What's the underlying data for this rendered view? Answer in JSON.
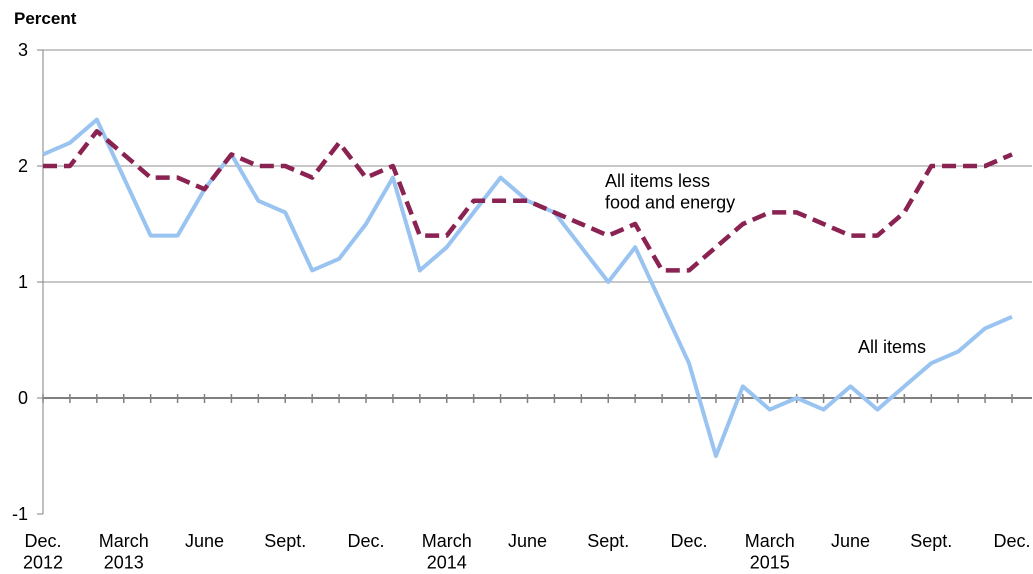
{
  "chart_data": {
    "type": "line",
    "y_label": "Percent",
    "categories": [
      "Dec.\n2012",
      null,
      null,
      "March\n2013",
      null,
      null,
      "June",
      null,
      null,
      "Sept.",
      null,
      null,
      "Dec.",
      null,
      null,
      "March\n2014",
      null,
      null,
      "June",
      null,
      null,
      "Sept.",
      null,
      null,
      "Dec.",
      null,
      null,
      "March\n2015",
      null,
      null,
      "June",
      null,
      null,
      "Sept.",
      null,
      null,
      "Dec."
    ],
    "series": [
      {
        "name": "All items",
        "color": "#99c3f0",
        "dashed": false,
        "values": [
          2.1,
          2.2,
          2.4,
          1.9,
          1.4,
          1.4,
          1.8,
          2.1,
          1.7,
          1.6,
          1.1,
          1.2,
          1.5,
          1.9,
          1.1,
          1.3,
          1.6,
          1.9,
          1.7,
          1.6,
          1.3,
          1.0,
          1.3,
          0.8,
          0.3,
          -0.5,
          0.1,
          -0.1,
          0.0,
          -0.1,
          0.1,
          -0.1,
          0.1,
          0.3,
          0.4,
          0.6,
          0.7
        ]
      },
      {
        "name": "All items less\nfood and energy",
        "color": "#8a2252",
        "dashed": true,
        "values": [
          2.0,
          2.0,
          2.3,
          2.1,
          1.9,
          1.9,
          1.8,
          2.1,
          2.0,
          2.0,
          1.9,
          2.2,
          1.9,
          2.0,
          1.4,
          1.4,
          1.7,
          1.7,
          1.7,
          1.6,
          1.5,
          1.4,
          1.5,
          1.1,
          1.1,
          1.3,
          1.5,
          1.6,
          1.6,
          1.5,
          1.4,
          1.4,
          1.6,
          2.0,
          2.0,
          2.0,
          2.1
        ]
      }
    ],
    "ylim": [
      -1,
      3
    ],
    "yticks": [
      -1,
      0,
      1,
      2,
      3
    ],
    "grid": true
  }
}
